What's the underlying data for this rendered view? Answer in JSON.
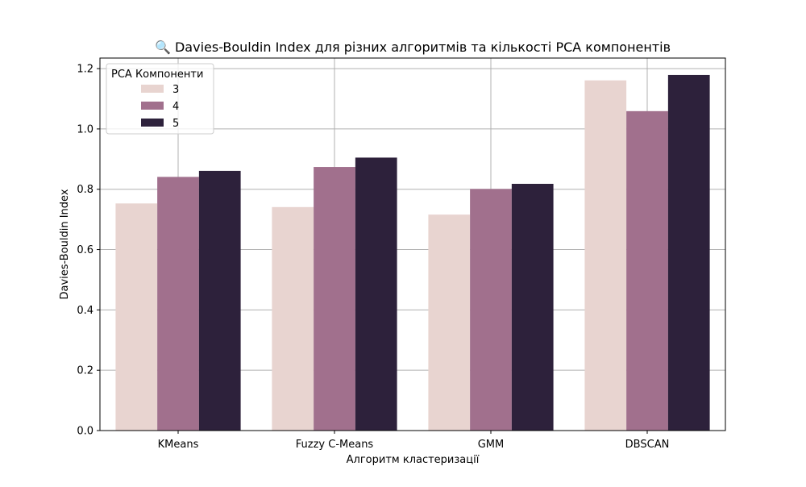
{
  "chart_data": {
    "type": "bar",
    "title": "🔍 Davies-Bouldin Index для різних алгоритмів та кількості PCA компонентів",
    "xlabel": "Алгоритм кластеризації",
    "ylabel": "Davies-Bouldin Index",
    "categories": [
      "KMeans",
      "Fuzzy C-Means",
      "GMM",
      "DBSCAN"
    ],
    "ylim": [
      0,
      1.235
    ],
    "yticks": [
      0.0,
      0.2,
      0.4,
      0.6,
      0.8,
      1.0,
      1.2
    ],
    "ytick_labels": [
      "0.0",
      "0.2",
      "0.4",
      "0.6",
      "0.8",
      "1.0",
      "1.2"
    ],
    "grid": true,
    "legend": {
      "title": "PCA Компоненти",
      "position": "top-left"
    },
    "series": [
      {
        "name": "3",
        "color": "#e8d4d0",
        "values": [
          0.753,
          0.741,
          0.716,
          1.161
        ]
      },
      {
        "name": "4",
        "color": "#a1708d",
        "values": [
          0.841,
          0.874,
          0.801,
          1.059
        ]
      },
      {
        "name": "5",
        "color": "#2d213b",
        "values": [
          0.861,
          0.905,
          0.818,
          1.179
        ]
      }
    ]
  }
}
